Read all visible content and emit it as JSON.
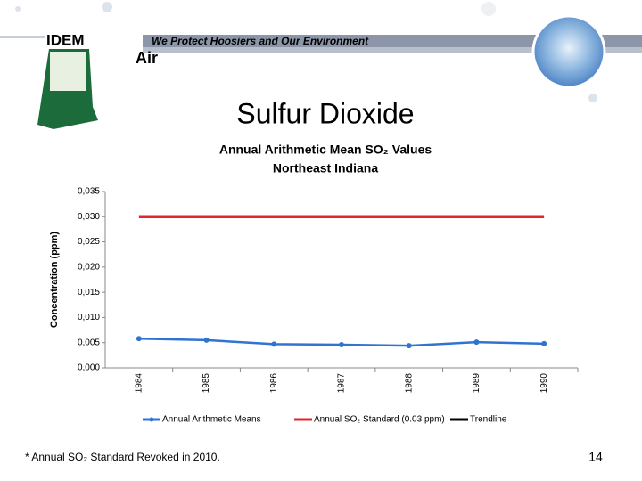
{
  "header": {
    "logo": "IDEM",
    "slogan": "We Protect Hoosiers and Our Environment",
    "section": "Air"
  },
  "slide_title": "Sulfur Dioxide",
  "chart_data": {
    "type": "line",
    "title": "Annual  Arithmetic Mean SO₂ Values",
    "subtitle": "Northeast Indiana",
    "ylabel": "Concentration (ppm)",
    "categories": [
      "1984",
      "1985",
      "1986",
      "1987",
      "1988",
      "1989",
      "1990"
    ],
    "series": [
      {
        "name": "Annual Arithmetic Means",
        "color": "#2e74d0",
        "marker": true,
        "values": [
          0.0058,
          0.0055,
          0.0047,
          0.0046,
          0.0044,
          0.0051,
          0.0048
        ]
      },
      {
        "name": "Annual SO₂ Standard (0.03 ppm)",
        "color": "#e3262b",
        "marker": false,
        "values": [
          0.03,
          0.03,
          0.03,
          0.03,
          0.03,
          0.03,
          0.03
        ]
      },
      {
        "name": "Trendline",
        "color": "#000000",
        "marker": false
      }
    ],
    "ylim": [
      0,
      0.035
    ],
    "yticks": [
      {
        "value": 0,
        "label": "0,000"
      },
      {
        "value": 0.005,
        "label": "0,005"
      },
      {
        "value": 0.01,
        "label": "0,010"
      },
      {
        "value": 0.015,
        "label": "0,015"
      },
      {
        "value": 0.02,
        "label": "0,020"
      },
      {
        "value": 0.025,
        "label": "0,025"
      },
      {
        "value": 0.03,
        "label": "0,030"
      },
      {
        "value": 0.035,
        "label": "0,035"
      }
    ],
    "grid": false,
    "legend": "bottom"
  },
  "footnote": "* Annual SO₂ Standard Revoked in 2010.",
  "page_number": "14"
}
